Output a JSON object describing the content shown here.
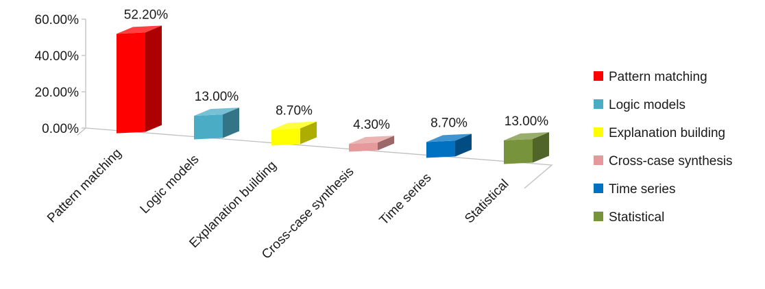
{
  "chart_data": {
    "type": "bar",
    "categories": [
      "Pattern matching",
      "Logic models",
      "Explanation building",
      "Cross-case synthesis",
      "Time series",
      "Statistical"
    ],
    "values": [
      52.2,
      13.0,
      8.7,
      4.3,
      8.7,
      13.0
    ],
    "value_labels": [
      "52.20%",
      "13.00%",
      "8.70%",
      "4.30%",
      "8.70%",
      "13.00%"
    ],
    "colors": [
      "#ff0000",
      "#4bacc6",
      "#ffff00",
      "#e6999a",
      "#0070c0",
      "#77933c"
    ],
    "y_ticks": [
      "0.00%",
      "20.00%",
      "40.00%",
      "60.00%"
    ],
    "ylim": [
      0,
      60
    ],
    "legend": {
      "position": "right",
      "entries": [
        "Pattern matching",
        "Logic models",
        "Explanation building",
        "Cross-case synthesis",
        "Time series",
        "Statistical"
      ]
    },
    "style": "3d-column",
    "grid": false
  }
}
